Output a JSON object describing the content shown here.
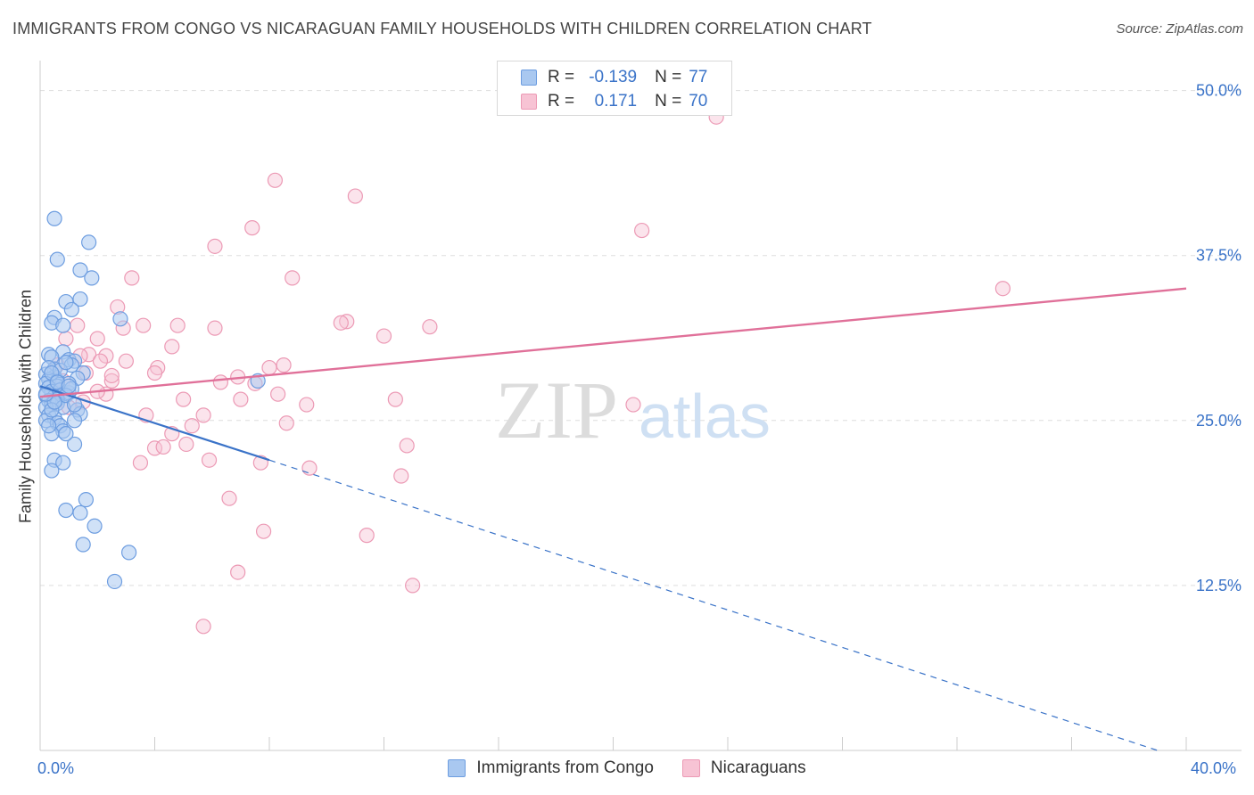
{
  "title": "IMMIGRANTS FROM CONGO VS NICARAGUAN FAMILY HOUSEHOLDS WITH CHILDREN CORRELATION CHART",
  "source": "Source: ZipAtlas.com",
  "watermark": {
    "zip": "ZIP",
    "atlas": "atlas"
  },
  "legend_top": [
    {
      "r_label": "R =",
      "r_value": "-0.139",
      "n_label": "N =",
      "n_value": "77"
    },
    {
      "r_label": "R =",
      "r_value": "0.171",
      "n_label": "N =",
      "n_value": "70"
    }
  ],
  "colors": {
    "blue_fill": "#a9c8f0",
    "blue_stroke": "#6d9de0",
    "blue_line": "#3a73c8",
    "pink_fill": "#f7c3d4",
    "pink_stroke": "#ec9ab5",
    "pink_line": "#e07099",
    "grid": "#dddddd",
    "tick_text": "#3a73c8"
  },
  "chart_data": {
    "type": "scatter",
    "title": "IMMIGRANTS FROM CONGO VS NICARAGUAN FAMILY HOUSEHOLDS WITH CHILDREN CORRELATION CHART",
    "xlabel": "",
    "ylabel": "Family Households with Children",
    "xlim": [
      0,
      40
    ],
    "ylim": [
      0,
      52
    ],
    "x_tick_labels": [
      "0.0%",
      "40.0%"
    ],
    "y_ticks": [
      12.5,
      25.0,
      37.5,
      50.0
    ],
    "y_tick_labels": [
      "12.5%",
      "25.0%",
      "37.5%",
      "50.0%"
    ],
    "grid": true,
    "legend_position": "bottom",
    "series": [
      {
        "name": "Immigrants from Congo",
        "color": "#a9c8f0",
        "trend": {
          "x0": 0,
          "y0": 27.6,
          "x1": 8.0,
          "y1": 22.0,
          "dash_to_x": 39.0,
          "dash_to_y": 0.0
        },
        "points": [
          [
            0.5,
            40.3
          ],
          [
            1.7,
            38.5
          ],
          [
            0.6,
            37.2
          ],
          [
            1.4,
            36.4
          ],
          [
            1.8,
            35.8
          ],
          [
            0.9,
            34.0
          ],
          [
            1.4,
            34.2
          ],
          [
            1.1,
            33.4
          ],
          [
            0.5,
            32.8
          ],
          [
            0.4,
            32.4
          ],
          [
            0.8,
            32.2
          ],
          [
            2.8,
            32.7
          ],
          [
            0.3,
            30.0
          ],
          [
            0.8,
            30.2
          ],
          [
            0.4,
            29.8
          ],
          [
            1.0,
            29.6
          ],
          [
            1.2,
            29.5
          ],
          [
            1.1,
            29.2
          ],
          [
            0.5,
            28.9
          ],
          [
            1.5,
            28.6
          ],
          [
            0.2,
            28.5
          ],
          [
            0.5,
            28.3
          ],
          [
            0.3,
            28.1
          ],
          [
            0.6,
            28.0
          ],
          [
            1.3,
            28.2
          ],
          [
            0.2,
            27.8
          ],
          [
            0.6,
            27.6
          ],
          [
            0.3,
            27.5
          ],
          [
            0.4,
            27.2
          ],
          [
            0.7,
            27.3
          ],
          [
            0.8,
            27.0
          ],
          [
            1.0,
            27.1
          ],
          [
            0.2,
            26.9
          ],
          [
            0.5,
            26.8
          ],
          [
            0.6,
            26.6
          ],
          [
            0.3,
            26.5
          ],
          [
            0.4,
            26.2
          ],
          [
            0.6,
            26.3
          ],
          [
            0.8,
            26.0
          ],
          [
            0.2,
            26.0
          ],
          [
            1.3,
            25.8
          ],
          [
            1.4,
            25.5
          ],
          [
            0.3,
            25.4
          ],
          [
            0.5,
            25.2
          ],
          [
            0.2,
            25.0
          ],
          [
            0.6,
            24.8
          ],
          [
            0.7,
            24.6
          ],
          [
            0.8,
            24.2
          ],
          [
            0.4,
            24.0
          ],
          [
            1.2,
            23.2
          ],
          [
            0.5,
            22.0
          ],
          [
            0.8,
            21.8
          ],
          [
            0.4,
            21.2
          ],
          [
            1.6,
            19.0
          ],
          [
            0.9,
            18.2
          ],
          [
            1.4,
            18.0
          ],
          [
            1.9,
            17.0
          ],
          [
            1.5,
            15.6
          ],
          [
            3.1,
            15.0
          ],
          [
            2.6,
            12.8
          ],
          [
            0.3,
            29.0
          ],
          [
            0.7,
            28.8
          ],
          [
            1.0,
            27.8
          ],
          [
            1.1,
            27.4
          ],
          [
            0.9,
            26.9
          ],
          [
            0.4,
            25.8
          ],
          [
            0.3,
            24.6
          ],
          [
            0.9,
            24.0
          ],
          [
            7.6,
            28.0
          ],
          [
            1.2,
            26.2
          ],
          [
            0.4,
            28.6
          ],
          [
            0.6,
            27.9
          ],
          [
            0.9,
            29.4
          ],
          [
            1.0,
            27.6
          ],
          [
            0.5,
            26.4
          ],
          [
            0.2,
            27.0
          ],
          [
            1.2,
            25.0
          ]
        ]
      },
      {
        "name": "Nicaraguans",
        "color": "#f7c3d4",
        "trend": {
          "x0": 0,
          "y0": 26.8,
          "x1": 40.0,
          "y1": 35.0
        },
        "points": [
          [
            23.6,
            48.0
          ],
          [
            8.2,
            43.2
          ],
          [
            11.0,
            42.0
          ],
          [
            7.4,
            39.6
          ],
          [
            21.0,
            39.4
          ],
          [
            6.1,
            38.2
          ],
          [
            3.2,
            35.8
          ],
          [
            8.8,
            35.8
          ],
          [
            33.6,
            35.0
          ],
          [
            2.7,
            33.6
          ],
          [
            10.7,
            32.5
          ],
          [
            3.6,
            32.2
          ],
          [
            1.3,
            32.2
          ],
          [
            4.8,
            32.2
          ],
          [
            6.1,
            32.0
          ],
          [
            2.9,
            32.0
          ],
          [
            12.0,
            31.4
          ],
          [
            13.6,
            32.1
          ],
          [
            10.5,
            32.4
          ],
          [
            0.9,
            31.2
          ],
          [
            2.0,
            31.2
          ],
          [
            4.6,
            30.6
          ],
          [
            1.7,
            30.0
          ],
          [
            1.4,
            29.9
          ],
          [
            2.3,
            29.9
          ],
          [
            2.1,
            29.5
          ],
          [
            3.0,
            29.5
          ],
          [
            8.5,
            29.2
          ],
          [
            8.0,
            29.0
          ],
          [
            4.1,
            29.0
          ],
          [
            4.0,
            28.6
          ],
          [
            1.6,
            28.6
          ],
          [
            0.6,
            29.2
          ],
          [
            6.9,
            28.3
          ],
          [
            2.5,
            28.0
          ],
          [
            6.3,
            27.9
          ],
          [
            7.5,
            27.8
          ],
          [
            2.3,
            27.0
          ],
          [
            8.3,
            27.0
          ],
          [
            0.7,
            27.1
          ],
          [
            12.4,
            26.6
          ],
          [
            5.0,
            26.6
          ],
          [
            7.0,
            26.6
          ],
          [
            9.3,
            26.2
          ],
          [
            20.7,
            26.2
          ],
          [
            1.0,
            26.0
          ],
          [
            3.7,
            25.4
          ],
          [
            5.7,
            25.4
          ],
          [
            5.3,
            24.6
          ],
          [
            8.6,
            24.8
          ],
          [
            4.6,
            24.0
          ],
          [
            4.0,
            22.9
          ],
          [
            4.3,
            23.0
          ],
          [
            5.1,
            23.2
          ],
          [
            12.8,
            23.1
          ],
          [
            3.5,
            21.8
          ],
          [
            5.9,
            22.0
          ],
          [
            7.7,
            21.8
          ],
          [
            9.4,
            21.4
          ],
          [
            12.6,
            20.8
          ],
          [
            6.6,
            19.1
          ],
          [
            7.8,
            16.6
          ],
          [
            11.4,
            16.3
          ],
          [
            6.9,
            13.5
          ],
          [
            13.0,
            12.5
          ],
          [
            5.7,
            9.4
          ],
          [
            2.5,
            28.4
          ],
          [
            1.5,
            26.4
          ],
          [
            0.8,
            28.0
          ],
          [
            2.0,
            27.2
          ]
        ]
      }
    ]
  }
}
